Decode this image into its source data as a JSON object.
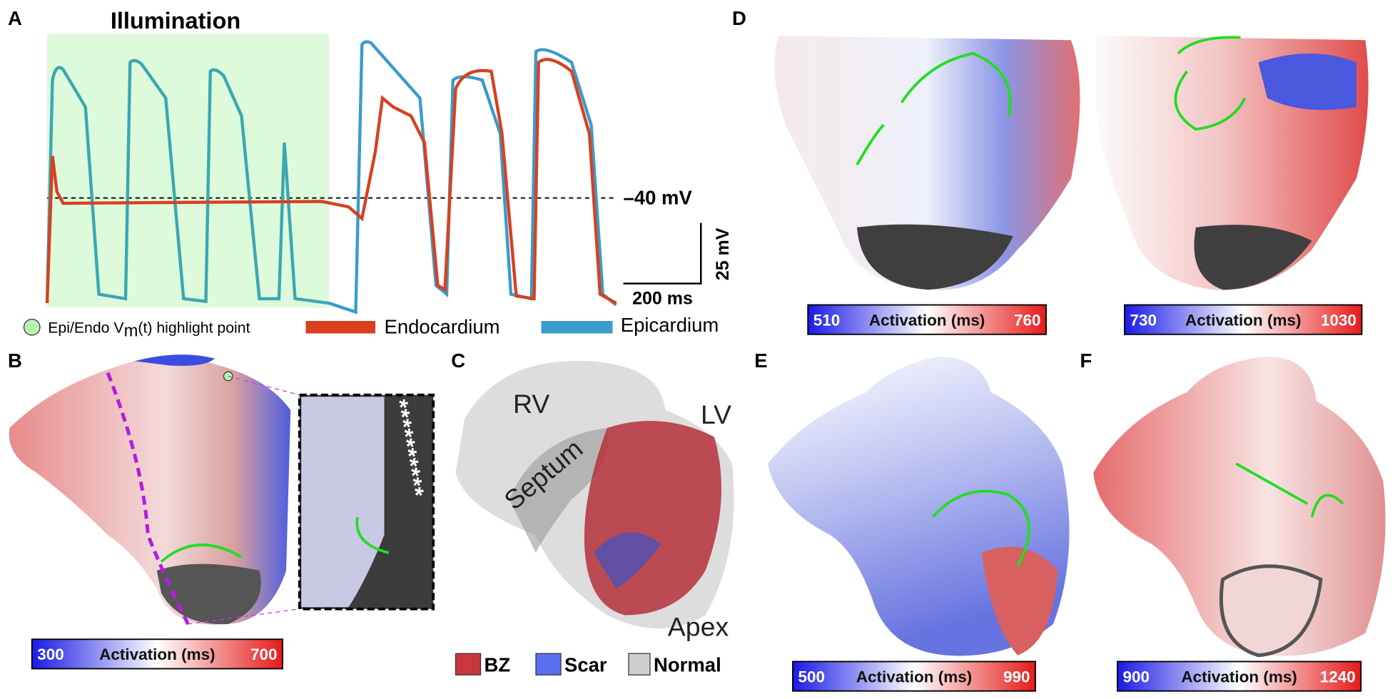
{
  "panels": {
    "A": {
      "label": "A",
      "title": "Illumination",
      "threshold_label": "–40 mV",
      "scale_y": "25 mV",
      "scale_x": "200 ms",
      "legend": {
        "highlight": [
          "Epi/Endo V",
          "m",
          "(t) highlight point"
        ],
        "endo": "Endocardium",
        "epi": "Epicardium"
      }
    },
    "B": {
      "label": "B",
      "markers": "**********",
      "colorbar": {
        "min": "300",
        "title": "Activation (ms)",
        "max": "700"
      }
    },
    "C": {
      "label": "C",
      "regions": [
        "RV",
        "Septum",
        "LV",
        "Apex"
      ],
      "legend": [
        "BZ",
        "Scar",
        "Normal"
      ]
    },
    "D": {
      "label": "D",
      "colorbars": [
        {
          "min": "510",
          "title": "Activation (ms)",
          "max": "760"
        },
        {
          "min": "730",
          "title": "Activation (ms)",
          "max": "1030"
        }
      ]
    },
    "E": {
      "label": "E",
      "colorbar": {
        "min": "500",
        "title": "Activation (ms)",
        "max": "990"
      }
    },
    "F": {
      "label": "F",
      "colorbar": {
        "min": "900",
        "title": "Activation (ms)",
        "max": "1240"
      }
    }
  }
}
